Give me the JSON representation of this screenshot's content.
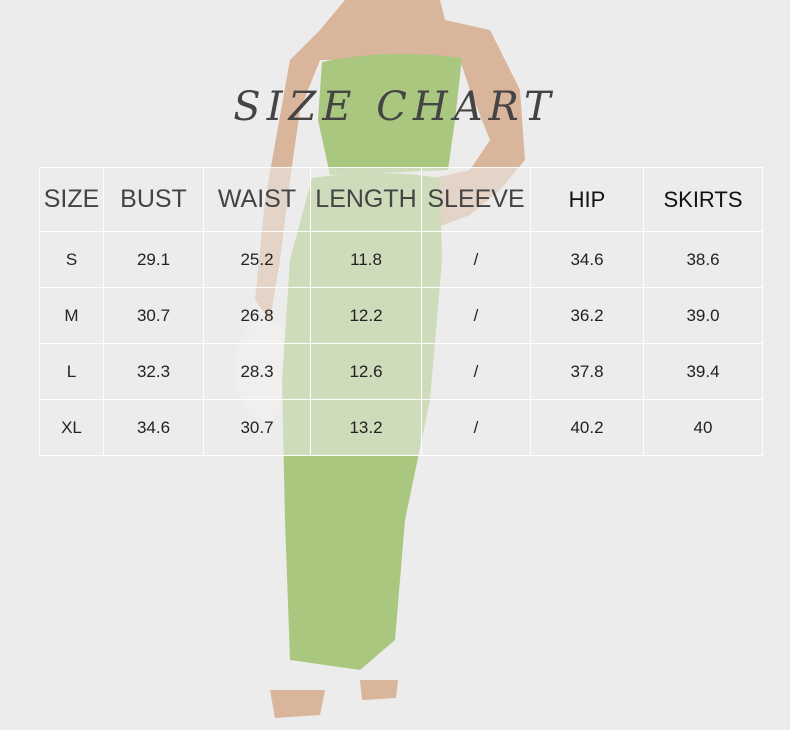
{
  "title": "SIZE CHART",
  "table": {
    "headers": [
      "SIZE",
      "BUST",
      "WAIST",
      "LENGTH",
      "SLEEVE",
      "HIP",
      "SKIRTS"
    ],
    "rows": [
      [
        "S",
        "29.1",
        "25.2",
        "11.8",
        "/",
        "34.6",
        "38.6"
      ],
      [
        "M",
        "30.7",
        "26.8",
        "12.2",
        "/",
        "36.2",
        "39.0"
      ],
      [
        "L",
        "32.3",
        "28.3",
        "12.6",
        "/",
        "37.8",
        "39.4"
      ],
      [
        "XL",
        "34.6",
        "30.7",
        "13.2",
        "/",
        "40.2",
        "40"
      ]
    ]
  },
  "colors": {
    "background": "#ececec",
    "garment": "#a9c77f",
    "skin": "#d8b49a"
  }
}
